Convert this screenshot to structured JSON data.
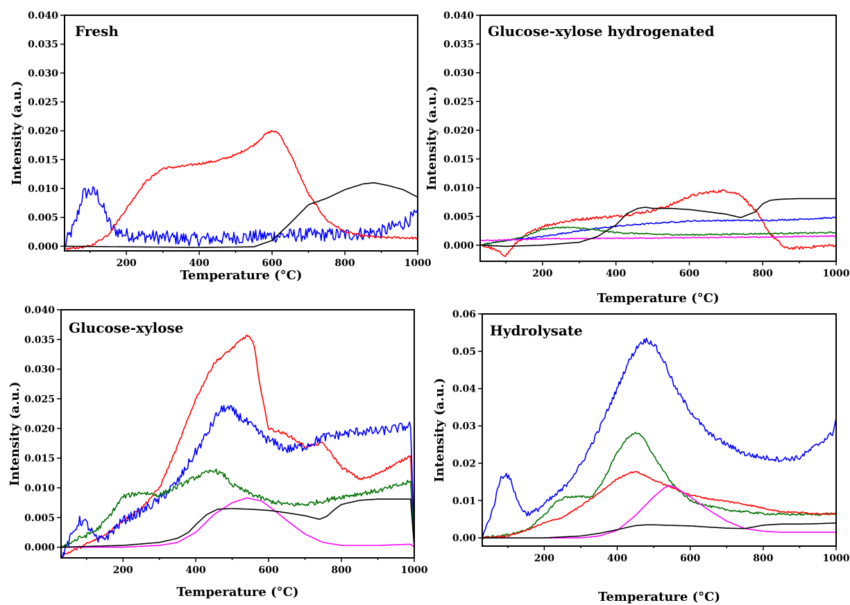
{
  "chart_data": [
    {
      "type": "line",
      "title": "Fresh",
      "xlabel": "Temperature (°C)",
      "ylabel": "Intensity (a.u.)",
      "xlim": [
        30,
        1000
      ],
      "ylim": [
        -0.0008,
        0.04
      ],
      "xticks": [
        200,
        400,
        600,
        800,
        1000
      ],
      "xtick_labels": [
        "200",
        "400",
        "600",
        "800",
        "1000"
      ],
      "yticks": [
        0.0,
        0.005,
        0.01,
        0.015,
        0.02,
        0.025,
        0.03,
        0.035,
        0.04
      ],
      "ytick_labels": [
        "0.000",
        "0.005",
        "0.010",
        "0.015",
        "0.020",
        "0.025",
        "0.030",
        "0.035",
        "0.040"
      ],
      "series": [
        {
          "color": "#0000ff",
          "noise": 0.0012,
          "x": [
            30,
            60,
            80,
            100,
            120,
            140,
            160,
            200,
            300,
            400,
            500,
            600,
            700,
            800,
            900,
            960,
            1000
          ],
          "y": [
            0.0,
            0.004,
            0.009,
            0.0095,
            0.009,
            0.006,
            0.003,
            0.002,
            0.0015,
            0.0012,
            0.0015,
            0.0018,
            0.002,
            0.002,
            0.0025,
            0.004,
            0.0055
          ]
        },
        {
          "color": "#ff0000",
          "noise": 0.0002,
          "x": [
            30,
            100,
            150,
            200,
            250,
            300,
            350,
            400,
            450,
            500,
            550,
            580,
            600,
            620,
            650,
            700,
            750,
            800,
            850,
            900,
            950,
            1000
          ],
          "y": [
            -0.0005,
            0.0,
            0.002,
            0.0065,
            0.011,
            0.0135,
            0.0138,
            0.0143,
            0.0148,
            0.0158,
            0.0175,
            0.0193,
            0.02,
            0.0195,
            0.016,
            0.009,
            0.0045,
            0.0025,
            0.0018,
            0.0015,
            0.0015,
            0.0014
          ]
        },
        {
          "color": "#000000",
          "noise": 0.0,
          "x": [
            30,
            200,
            400,
            550,
            600,
            650,
            700,
            750,
            800,
            850,
            880,
            920,
            960,
            1000
          ],
          "y": [
            0.0,
            -0.0001,
            -0.0002,
            -0.0001,
            0.001,
            0.004,
            0.0072,
            0.0083,
            0.0098,
            0.0108,
            0.011,
            0.0105,
            0.0098,
            0.0085
          ]
        }
      ]
    },
    {
      "type": "line",
      "title": "Glucose-xylose hydrogenated",
      "xlabel": "Temperature (°C)",
      "ylabel": "Intensity (a.u.)",
      "xlim": [
        30,
        1000
      ],
      "ylim": [
        -0.0028,
        0.04
      ],
      "xticks": [
        200,
        400,
        600,
        800,
        1000
      ],
      "xtick_labels": [
        "200",
        "400",
        "600",
        "800",
        "1000"
      ],
      "yticks": [
        0.0,
        0.005,
        0.01,
        0.015,
        0.02,
        0.025,
        0.03,
        0.035,
        0.04
      ],
      "ytick_labels": [
        "0.000",
        "0.005",
        "0.010",
        "0.015",
        "0.020",
        "0.025",
        "0.030",
        "0.035",
        "0.040"
      ],
      "series": [
        {
          "color": "#ff0000",
          "noise": 0.00025,
          "x": [
            30,
            60,
            90,
            100,
            130,
            160,
            200,
            250,
            300,
            350,
            400,
            450,
            500,
            550,
            600,
            650,
            700,
            740,
            780,
            820,
            860,
            900,
            950,
            1000
          ],
          "y": [
            0.0,
            -0.0005,
            -0.0015,
            -0.0018,
            0.0005,
            0.002,
            0.0033,
            0.004,
            0.0045,
            0.0048,
            0.005,
            0.0055,
            0.006,
            0.007,
            0.0085,
            0.0092,
            0.0095,
            0.0088,
            0.006,
            0.002,
            -0.0005,
            -0.0005,
            -0.0002,
            0.0
          ]
        },
        {
          "color": "#0000ff",
          "noise": 0.00012,
          "x": [
            30,
            100,
            200,
            300,
            400,
            500,
            600,
            700,
            800,
            900,
            1000
          ],
          "y": [
            0.0,
            0.0008,
            0.0015,
            0.0025,
            0.0033,
            0.0038,
            0.0042,
            0.0043,
            0.0043,
            0.0045,
            0.0048
          ]
        },
        {
          "color": "#007000",
          "noise": 0.00012,
          "x": [
            30,
            100,
            150,
            200,
            250,
            300,
            350,
            400,
            500,
            600,
            700,
            800,
            900,
            1000
          ],
          "y": [
            0.0,
            0.0008,
            0.0015,
            0.0028,
            0.0031,
            0.003,
            0.0026,
            0.0022,
            0.0019,
            0.0018,
            0.0019,
            0.002,
            0.0021,
            0.0022
          ]
        },
        {
          "color": "#ff00ff",
          "noise": 8e-05,
          "x": [
            30,
            200,
            400,
            600,
            800,
            1000
          ],
          "y": [
            0.0008,
            0.0011,
            0.0012,
            0.0013,
            0.0014,
            0.0016
          ]
        },
        {
          "color": "#000000",
          "noise": 0.0,
          "x": [
            30,
            100,
            200,
            300,
            350,
            400,
            430,
            460,
            480,
            500,
            550,
            600,
            650,
            700,
            740,
            780,
            800,
            820,
            850,
            900,
            950,
            1000
          ],
          "y": [
            0.0,
            -0.0002,
            0.0,
            0.0005,
            0.0015,
            0.0035,
            0.0055,
            0.0064,
            0.0066,
            0.0064,
            0.0064,
            0.0062,
            0.0058,
            0.0054,
            0.0048,
            0.0058,
            0.0072,
            0.0078,
            0.008,
            0.0081,
            0.0081,
            0.0081
          ]
        }
      ]
    },
    {
      "type": "line",
      "title": "Glucose-xylose",
      "xlabel": "Temperature (°C)",
      "ylabel": "Intensity (a.u.)",
      "xlim": [
        30,
        1000
      ],
      "ylim": [
        -0.0018,
        0.04
      ],
      "xticks": [
        200,
        400,
        600,
        800,
        1000
      ],
      "xtick_labels": [
        "200",
        "400",
        "600",
        "800",
        "1000"
      ],
      "yticks": [
        0.0,
        0.005,
        0.01,
        0.015,
        0.02,
        0.025,
        0.03,
        0.035,
        0.04
      ],
      "ytick_labels": [
        "0.000",
        "0.005",
        "0.010",
        "0.015",
        "0.020",
        "0.025",
        "0.030",
        "0.035",
        "0.040"
      ],
      "series": [
        {
          "color": "#ff0000",
          "noise": 0.00025,
          "x": [
            30,
            100,
            150,
            200,
            250,
            300,
            350,
            400,
            450,
            500,
            530,
            545,
            560,
            580,
            600,
            650,
            700,
            750,
            800,
            850,
            880,
            900,
            950,
            990,
            1000
          ],
          "y": [
            -0.0015,
            0.0005,
            0.002,
            0.0045,
            0.0065,
            0.01,
            0.017,
            0.025,
            0.031,
            0.0335,
            0.0352,
            0.0357,
            0.034,
            0.026,
            0.02,
            0.019,
            0.017,
            0.0175,
            0.0135,
            0.0115,
            0.0118,
            0.0125,
            0.014,
            0.0155,
            0.0
          ]
        },
        {
          "color": "#0000ff",
          "noise": 0.0008,
          "x": [
            30,
            60,
            80,
            100,
            130,
            160,
            200,
            250,
            300,
            350,
            400,
            430,
            460,
            480,
            500,
            550,
            600,
            650,
            700,
            750,
            800,
            850,
            900,
            950,
            990,
            1000
          ],
          "y": [
            -0.0018,
            0.002,
            0.0045,
            0.004,
            0.001,
            0.002,
            0.0045,
            0.006,
            0.008,
            0.011,
            0.016,
            0.019,
            0.0225,
            0.0235,
            0.023,
            0.0205,
            0.018,
            0.0165,
            0.017,
            0.0185,
            0.019,
            0.0195,
            0.0195,
            0.02,
            0.0205,
            0.0
          ]
        },
        {
          "color": "#007000",
          "noise": 0.0004,
          "x": [
            30,
            80,
            100,
            130,
            160,
            200,
            250,
            300,
            350,
            400,
            450,
            480,
            500,
            550,
            600,
            650,
            700,
            750,
            800,
            850,
            900,
            950,
            990,
            1000
          ],
          "y": [
            0.0,
            0.0015,
            0.002,
            0.003,
            0.005,
            0.0085,
            0.0092,
            0.0088,
            0.0102,
            0.0118,
            0.013,
            0.012,
            0.0105,
            0.009,
            0.0078,
            0.0072,
            0.0072,
            0.0078,
            0.0085,
            0.009,
            0.0095,
            0.0103,
            0.011,
            0.0
          ]
        },
        {
          "color": "#ff00ff",
          "noise": 0.0,
          "x": [
            30,
            200,
            300,
            350,
            400,
            450,
            500,
            540,
            580,
            620,
            650,
            700,
            750,
            800,
            900,
            990,
            1000
          ],
          "y": [
            0.0,
            0.0,
            0.0003,
            0.0008,
            0.0025,
            0.0055,
            0.0075,
            0.0083,
            0.0078,
            0.006,
            0.0045,
            0.0022,
            0.0008,
            0.0003,
            0.0003,
            0.0005,
            0.0
          ]
        },
        {
          "color": "#000000",
          "noise": 0.0,
          "x": [
            30,
            200,
            300,
            350,
            380,
            400,
            430,
            460,
            500,
            550,
            600,
            650,
            700,
            740,
            760,
            780,
            800,
            850,
            900,
            990,
            1000
          ],
          "y": [
            0.0,
            0.0003,
            0.0008,
            0.0015,
            0.0025,
            0.0038,
            0.0055,
            0.0064,
            0.0065,
            0.0064,
            0.0062,
            0.0058,
            0.0053,
            0.0047,
            0.0052,
            0.0063,
            0.0072,
            0.0079,
            0.0081,
            0.0081,
            0.0
          ]
        }
      ]
    },
    {
      "type": "line",
      "title": "Hydrolysate",
      "xlabel": "Temperature (°C)",
      "ylabel": "Intensity (a.u.)",
      "xlim": [
        30,
        1000
      ],
      "ylim": [
        -0.0022,
        0.06
      ],
      "xticks": [
        200,
        400,
        600,
        800,
        1000
      ],
      "xtick_labels": [
        "200",
        "400",
        "600",
        "800",
        "1000"
      ],
      "yticks": [
        0.0,
        0.01,
        0.02,
        0.03,
        0.04,
        0.05,
        0.06
      ],
      "ytick_labels": [
        "0.00",
        "0.01",
        "0.02",
        "0.03",
        "0.04",
        "0.05",
        "0.06"
      ],
      "series": [
        {
          "color": "#0000ff",
          "noise": 0.0007,
          "x": [
            30,
            60,
            80,
            95,
            110,
            130,
            150,
            170,
            200,
            250,
            300,
            350,
            400,
            430,
            460,
            480,
            500,
            530,
            560,
            600,
            650,
            700,
            750,
            800,
            850,
            900,
            950,
            990,
            1000
          ],
          "y": [
            0.0,
            0.008,
            0.016,
            0.0172,
            0.015,
            0.009,
            0.0065,
            0.0068,
            0.009,
            0.013,
            0.0195,
            0.029,
            0.04,
            0.047,
            0.052,
            0.053,
            0.052,
            0.047,
            0.04,
            0.034,
            0.028,
            0.025,
            0.0225,
            0.0215,
            0.021,
            0.0215,
            0.025,
            0.028,
            0.032
          ]
        },
        {
          "color": "#007000",
          "noise": 0.0003,
          "x": [
            30,
            100,
            150,
            200,
            230,
            260,
            300,
            330,
            360,
            400,
            430,
            450,
            470,
            500,
            550,
            600,
            650,
            700,
            750,
            800,
            850,
            900,
            950,
            1000
          ],
          "y": [
            0.0,
            0.0008,
            0.002,
            0.006,
            0.0095,
            0.011,
            0.011,
            0.011,
            0.015,
            0.023,
            0.027,
            0.0283,
            0.027,
            0.022,
            0.0145,
            0.01,
            0.0085,
            0.0075,
            0.007,
            0.0065,
            0.0063,
            0.0063,
            0.0063,
            0.0065
          ]
        },
        {
          "color": "#ff0000",
          "noise": 0.0002,
          "x": [
            30,
            100,
            150,
            200,
            250,
            300,
            350,
            400,
            430,
            450,
            470,
            500,
            550,
            600,
            650,
            700,
            750,
            800,
            850,
            900,
            950,
            1000
          ],
          "y": [
            0.0,
            0.0005,
            0.002,
            0.004,
            0.0055,
            0.0085,
            0.012,
            0.0158,
            0.0173,
            0.0178,
            0.017,
            0.0155,
            0.0135,
            0.0115,
            0.0105,
            0.0098,
            0.009,
            0.008,
            0.007,
            0.0068,
            0.0065,
            0.0065
          ]
        },
        {
          "color": "#ff00ff",
          "noise": 0.0,
          "x": [
            30,
            300,
            350,
            400,
            450,
            500,
            530,
            545,
            560,
            600,
            650,
            700,
            750,
            800,
            850,
            900,
            950,
            1000
          ],
          "y": [
            0.0,
            0.0,
            0.0005,
            0.002,
            0.006,
            0.011,
            0.0135,
            0.014,
            0.0135,
            0.011,
            0.0075,
            0.0045,
            0.0025,
            0.0018,
            0.0015,
            0.0015,
            0.0015,
            0.0015
          ]
        },
        {
          "color": "#000000",
          "noise": 0.0,
          "x": [
            30,
            200,
            300,
            350,
            400,
            450,
            480,
            500,
            600,
            700,
            750,
            800,
            850,
            900,
            950,
            1000
          ],
          "y": [
            0.0,
            0.0,
            0.0005,
            0.0012,
            0.0022,
            0.0033,
            0.0035,
            0.0035,
            0.0032,
            0.0026,
            0.0025,
            0.0034,
            0.0037,
            0.0037,
            0.0038,
            0.004
          ]
        }
      ]
    }
  ]
}
